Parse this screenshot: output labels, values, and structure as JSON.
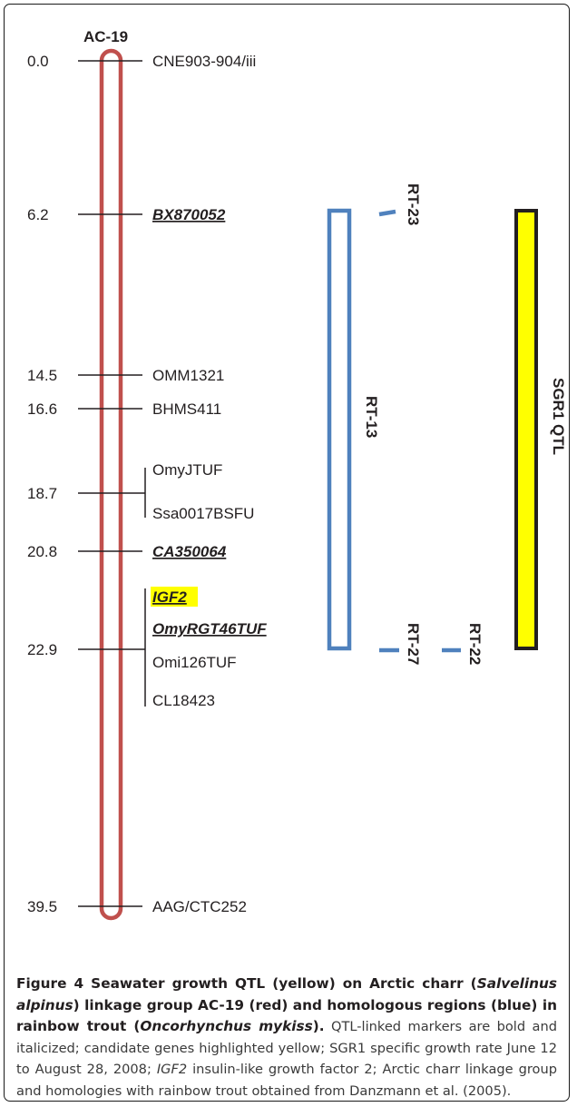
{
  "linkage_group": "AC-19",
  "colors": {
    "linkage": "#c0504d",
    "homolog": "#4f81bd",
    "qtl_fill": "#ffff00",
    "qtl_border": "#231f20",
    "highlight": "#ffff00"
  },
  "markers": [
    {
      "pos": "0.0",
      "names": [
        {
          "text": "CNE903-904/iii",
          "bold": false,
          "highlight": false
        }
      ]
    },
    {
      "pos": "6.2",
      "names": [
        {
          "text": "BX870052",
          "bold": true,
          "highlight": false
        }
      ]
    },
    {
      "pos": "14.5",
      "names": [
        {
          "text": "OMM1321",
          "bold": false,
          "highlight": false
        }
      ]
    },
    {
      "pos": "16.6",
      "names": [
        {
          "text": "BHMS411",
          "bold": false,
          "highlight": false
        }
      ]
    },
    {
      "pos": "18.7",
      "names": [
        {
          "text": "OmyJTUF",
          "bold": false,
          "highlight": false
        },
        {
          "text": "Ssa0017BSFU",
          "bold": false,
          "highlight": false
        }
      ]
    },
    {
      "pos": "20.8",
      "names": [
        {
          "text": "CA350064",
          "bold": true,
          "highlight": false
        }
      ]
    },
    {
      "pos": "22.9",
      "names": [
        {
          "text": "IGF2",
          "bold": true,
          "highlight": true
        },
        {
          "text": "OmyRGT46TUF",
          "bold": true,
          "highlight": false
        },
        {
          "text": "Omi126TUF",
          "bold": false,
          "highlight": false
        },
        {
          "text": "CL18423",
          "bold": false,
          "highlight": false
        }
      ]
    },
    {
      "pos": "39.5",
      "names": [
        {
          "text": "AAG/CTC252",
          "bold": false,
          "highlight": false
        }
      ]
    }
  ],
  "homologs": {
    "rt13": "RT-13",
    "rt23": "RT-23",
    "rt27": "RT-27",
    "rt22": "RT-22"
  },
  "qtl_label": "SGR1 QTL",
  "caption": {
    "figure_label": "Figure 4",
    "title_parts": [
      {
        "text": " Seawater growth QTL (yellow) on Arctic charr (",
        "i": false
      },
      {
        "text": "Salvelinus alpinus",
        "i": true
      },
      {
        "text": ") linkage group AC-19 (red) and homologous regions (blue) in rainbow trout (",
        "i": false
      },
      {
        "text": "Oncorhynchus mykiss",
        "i": true
      },
      {
        "text": ").",
        "i": false
      }
    ],
    "body_parts": [
      {
        "text": " QTL-linked markers are bold and italicized; candidate genes highlighted yellow; SGR1 specific growth rate June 12 to August 28, 2008; ",
        "i": false
      },
      {
        "text": "IGF2",
        "i": true
      },
      {
        "text": " insulin-like growth factor 2; Arctic charr linkage group and homologies with rainbow trout obtained from Danzmann et al. (2005).",
        "i": false
      }
    ]
  }
}
